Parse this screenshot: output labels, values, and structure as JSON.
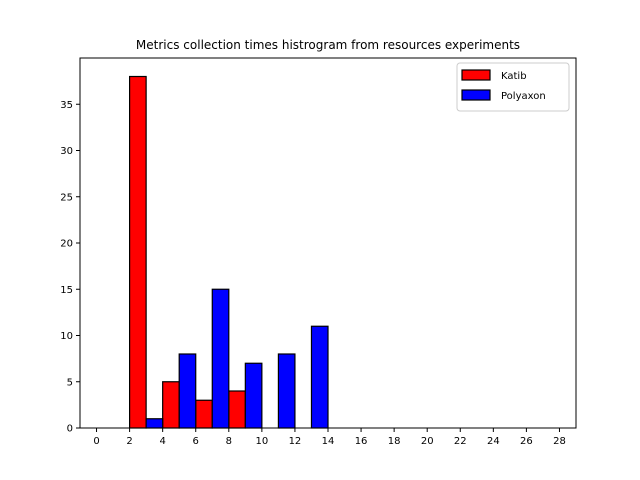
{
  "chart_data": {
    "type": "bar",
    "title": "Metrics collection times histrogram from resources experiments",
    "xlabel": "",
    "ylabel": "",
    "xlim": [
      -1,
      29
    ],
    "ylim": [
      0,
      40
    ],
    "xticks": [
      0,
      2,
      4,
      6,
      8,
      10,
      12,
      14,
      16,
      18,
      20,
      22,
      24,
      26,
      28
    ],
    "yticks": [
      0,
      5,
      10,
      15,
      20,
      25,
      30,
      35
    ],
    "bin_edges": [
      0,
      2,
      4,
      6,
      8,
      10,
      12,
      14,
      16,
      18,
      20,
      22,
      24,
      26,
      28
    ],
    "series": [
      {
        "name": "Katib",
        "color": "#ff0000",
        "values": [
          0,
          38,
          5,
          3,
          4,
          0,
          0,
          0,
          0,
          0,
          0,
          0,
          0,
          0
        ]
      },
      {
        "name": "Polyaxon",
        "color": "#0000ff",
        "values": [
          0,
          1,
          8,
          15,
          7,
          8,
          11,
          0,
          0,
          0,
          0,
          0,
          0,
          0
        ]
      }
    ],
    "legend": "top-right",
    "grid": false
  }
}
